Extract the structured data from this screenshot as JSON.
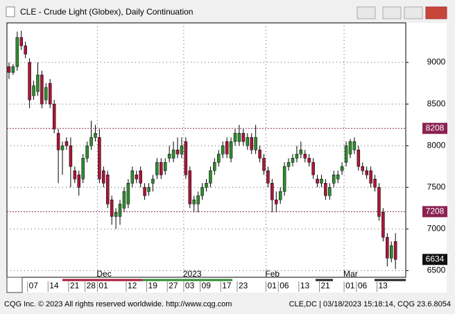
{
  "window": {
    "footer_left": "CQG Inc. © 2023 All rights reserved worldwide. http://www.cqg.com",
    "footer_right": "CLE,DC | 03/18/2023 15:18:14, CQG 23.6.8054"
  },
  "chart_data": {
    "type": "candlestick",
    "title": "CLE - Crude Light (Globex), Daily Continuation",
    "categories": [
      null,
      null,
      null,
      null,
      null,
      "07",
      null,
      null,
      null,
      null,
      "14",
      null,
      null,
      null,
      null,
      "21",
      null,
      null,
      null,
      "28",
      null,
      null,
      "01",
      null,
      null,
      null,
      null,
      null,
      null,
      "12",
      null,
      null,
      null,
      null,
      "19",
      null,
      null,
      null,
      null,
      "27",
      null,
      null,
      null,
      "03",
      null,
      null,
      null,
      "09",
      null,
      null,
      null,
      null,
      "17",
      null,
      null,
      null,
      "23",
      null,
      null,
      null,
      null,
      null,
      null,
      "01",
      null,
      null,
      "06",
      null,
      null,
      null,
      null,
      "13",
      null,
      null,
      null,
      null,
      "21",
      null,
      null,
      null,
      null,
      null,
      "01",
      null,
      null,
      "06",
      null,
      null,
      null,
      null,
      "13",
      null,
      null,
      null,
      null
    ],
    "months": [
      null,
      null,
      null,
      null,
      null,
      null,
      null,
      null,
      null,
      null,
      null,
      null,
      null,
      null,
      null,
      null,
      null,
      null,
      null,
      null,
      null,
      null,
      "Dec",
      null,
      null,
      null,
      null,
      null,
      null,
      null,
      null,
      null,
      null,
      null,
      null,
      null,
      null,
      null,
      null,
      null,
      null,
      null,
      null,
      "2023",
      null,
      null,
      null,
      null,
      null,
      null,
      null,
      null,
      null,
      null,
      null,
      null,
      null,
      null,
      null,
      null,
      null,
      null,
      null,
      "Feb",
      null,
      null,
      null,
      null,
      null,
      null,
      null,
      null,
      null,
      null,
      null,
      null,
      null,
      null,
      null,
      null,
      null,
      null,
      "Mar",
      null,
      null,
      null,
      null,
      null,
      null,
      null,
      null,
      null,
      null,
      null,
      null
    ],
    "open": [
      8950,
      8880,
      8950,
      9300,
      9200,
      9000,
      8600,
      8650,
      8850,
      8550,
      8750,
      8500,
      8150,
      7950,
      8050,
      8000,
      7700,
      7650,
      7600,
      7850,
      8000,
      8100,
      8100,
      7700,
      7650,
      7350,
      7150,
      7150,
      7250,
      7300,
      7550,
      7650,
      7700,
      7500,
      7450,
      7550,
      7650,
      7800,
      7700,
      7850,
      7850,
      7950,
      7900,
      8050,
      7700,
      7300,
      7300,
      7400,
      7500,
      7550,
      7700,
      7800,
      7900,
      8050,
      7850,
      8050,
      8050,
      8150,
      8000,
      8100,
      7950,
      7950,
      7850,
      7700,
      7550,
      7350,
      7350,
      7450,
      7750,
      7800,
      7850,
      7900,
      7900,
      7850,
      7800,
      7600,
      7550,
      7550,
      7400,
      7550,
      7600,
      7700,
      7800,
      7900,
      7950,
      7950,
      7750,
      7700,
      7700,
      7600,
      7500,
      7200,
      6900,
      6650,
      6850
    ],
    "high": [
      9000,
      8980,
      9370,
      9380,
      9250,
      9050,
      8780,
      9000,
      8900,
      8750,
      8800,
      8550,
      8200,
      8050,
      8100,
      8100,
      7750,
      7700,
      7900,
      8050,
      8300,
      8250,
      8200,
      7750,
      7700,
      7400,
      7250,
      7350,
      7500,
      7600,
      7750,
      7700,
      7750,
      7550,
      7550,
      7650,
      7850,
      7850,
      7850,
      8000,
      8050,
      8100,
      8100,
      8100,
      7750,
      7400,
      7450,
      7550,
      7600,
      7750,
      7850,
      7950,
      8050,
      8100,
      8100,
      8200,
      8250,
      8200,
      8150,
      8150,
      8250,
      8000,
      7900,
      7750,
      7600,
      7450,
      7500,
      7800,
      7850,
      7900,
      8000,
      8050,
      7950,
      7900,
      7850,
      7650,
      7650,
      7600,
      7550,
      7700,
      7700,
      7800,
      8050,
      8080,
      8100,
      8000,
      7800,
      7750,
      7750,
      7650,
      7550,
      7250,
      6950,
      6850,
      6950
    ],
    "low": [
      8800,
      8850,
      8900,
      9150,
      9050,
      8450,
      8550,
      8600,
      8450,
      8500,
      8450,
      8150,
      7550,
      7650,
      7950,
      7500,
      7550,
      7400,
      7550,
      7800,
      7950,
      8050,
      7550,
      7500,
      7250,
      7050,
      7000,
      7050,
      7200,
      7250,
      7500,
      7550,
      7500,
      7350,
      7400,
      7450,
      7600,
      7600,
      7650,
      7800,
      7800,
      7850,
      7850,
      7600,
      7250,
      7200,
      7200,
      7350,
      7450,
      7500,
      7650,
      7750,
      7850,
      7850,
      7800,
      8000,
      8000,
      8000,
      7950,
      7900,
      7900,
      7800,
      7650,
      7500,
      7200,
      7200,
      7300,
      7400,
      7700,
      7750,
      7800,
      7850,
      7800,
      7750,
      7600,
      7500,
      7500,
      7350,
      7350,
      7500,
      7550,
      7650,
      7750,
      7850,
      7900,
      7700,
      7650,
      7600,
      7500,
      7450,
      7100,
      6850,
      6550,
      6600,
      6520
    ],
    "close": [
      8880,
      8950,
      9300,
      9200,
      9100,
      8550,
      8720,
      8850,
      8500,
      8700,
      8500,
      8200,
      7950,
      8000,
      8000,
      7750,
      7600,
      7500,
      7850,
      8000,
      8100,
      8150,
      7600,
      7550,
      7300,
      7150,
      7200,
      7300,
      7450,
      7550,
      7700,
      7600,
      7550,
      7400,
      7500,
      7600,
      7800,
      7650,
      7800,
      7900,
      7950,
      7900,
      8000,
      7650,
      7300,
      7350,
      7400,
      7500,
      7550,
      7700,
      7800,
      7900,
      8000,
      7900,
      8050,
      8150,
      8150,
      8050,
      8100,
      7950,
      8100,
      7850,
      7700,
      7550,
      7350,
      7300,
      7450,
      7750,
      7800,
      7850,
      7900,
      7950,
      7850,
      7800,
      7650,
      7550,
      7600,
      7400,
      7500,
      7650,
      7650,
      7750,
      8000,
      8050,
      8050,
      7750,
      7700,
      7650,
      7550,
      7500,
      7150,
      6900,
      6650,
      6800,
      6634
    ],
    "up_color": "#2e8b2e",
    "down_color": "#a8173a",
    "ylim": [
      6420,
      9475
    ],
    "yticks": [
      6500,
      7000,
      7500,
      8000,
      8500,
      9000
    ],
    "grid": true,
    "ref_lines": [
      8208,
      7208
    ],
    "ref_color": "#8b2252"
  }
}
